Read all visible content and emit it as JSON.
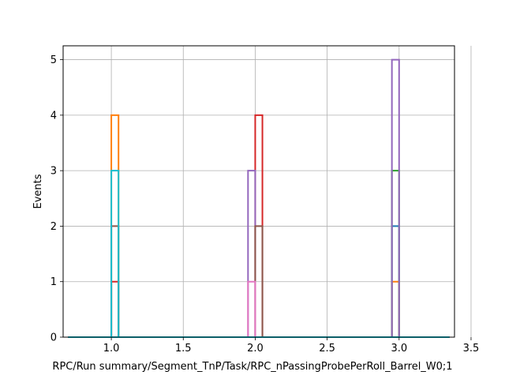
{
  "chart_data": {
    "type": "step-histogram",
    "xlabel": "RPC/Run summary/Segment_TnP/Task/RPC_nPassingProbePerRoll_Barrel_W0;1",
    "ylabel": "Events",
    "xlim": [
      0.665,
      3.385
    ],
    "ylim": [
      0,
      5.25
    ],
    "xticks": [
      1.0,
      1.5,
      2.0,
      2.5,
      3.0,
      3.5
    ],
    "xtick_labels": [
      "1.0",
      "1.5",
      "2.0",
      "2.5",
      "3.0",
      "3.5"
    ],
    "yticks": [
      0,
      1,
      2,
      3,
      4,
      5
    ],
    "ytick_labels": [
      "0",
      "1",
      "2",
      "3",
      "4",
      "5"
    ],
    "grid": true,
    "legend": "none",
    "bin_width": 0.05,
    "baseline_range": [
      0.7,
      3.35
    ],
    "series": [
      {
        "color": "#1f77b4",
        "bins": [
          {
            "x": 2.975,
            "count": 2
          }
        ]
      },
      {
        "color": "#ff7f0e",
        "bins": [
          {
            "x": 1.025,
            "count": 4
          },
          {
            "x": 2.975,
            "count": 1
          }
        ]
      },
      {
        "color": "#2ca02c",
        "bins": [
          {
            "x": 2.975,
            "count": 3
          }
        ]
      },
      {
        "color": "#d62728",
        "bins": [
          {
            "x": 1.025,
            "count": 1
          },
          {
            "x": 2.025,
            "count": 4
          }
        ]
      },
      {
        "color": "#9467bd",
        "bins": [
          {
            "x": 1.975,
            "count": 3
          },
          {
            "x": 2.975,
            "count": 5
          }
        ]
      },
      {
        "color": "#8c564b",
        "bins": [
          {
            "x": 1.025,
            "count": 2
          },
          {
            "x": 2.025,
            "count": 2
          }
        ]
      },
      {
        "color": "#e377c2",
        "bins": [
          {
            "x": 1.975,
            "count": 1
          }
        ]
      },
      {
        "color": "#17becf",
        "bins": [
          {
            "x": 1.025,
            "count": 3
          }
        ]
      }
    ]
  }
}
